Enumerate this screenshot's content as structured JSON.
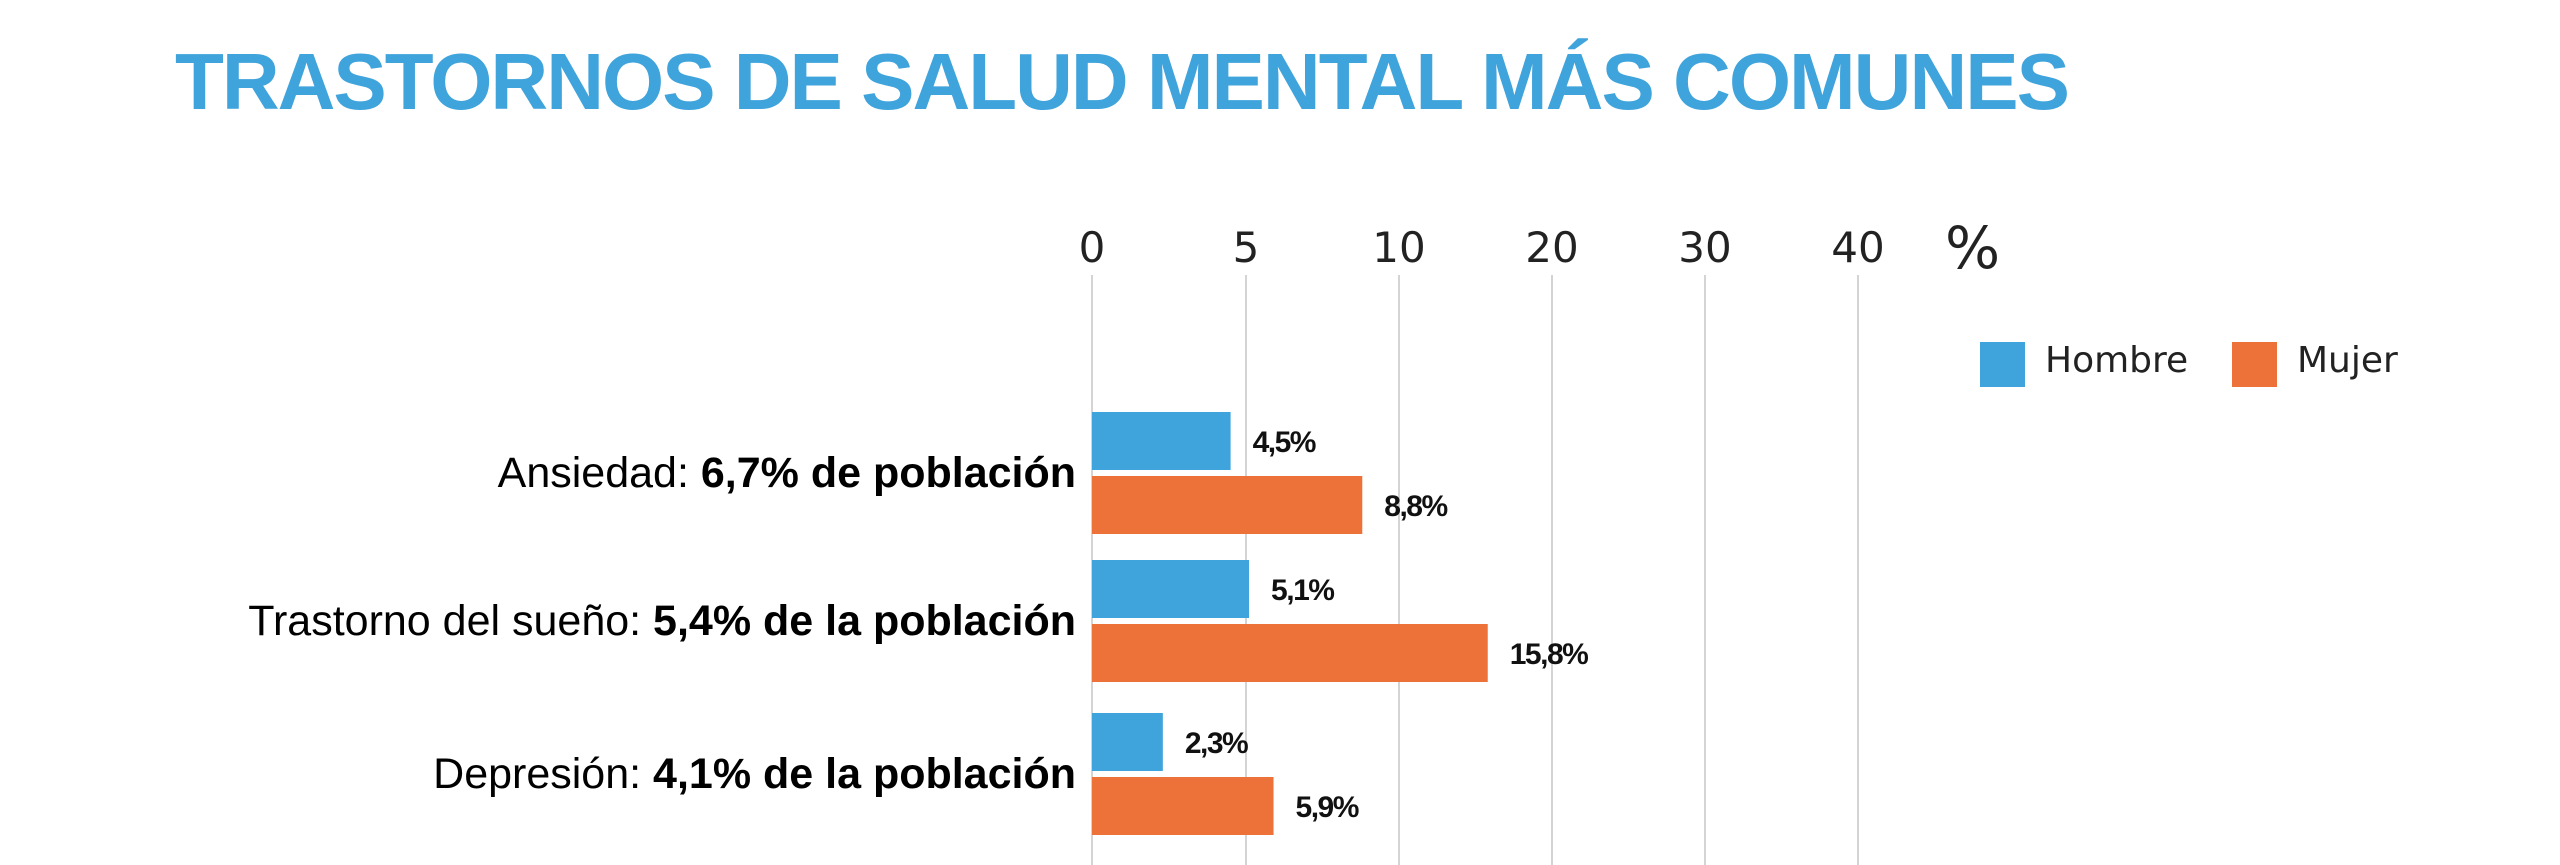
{
  "title": "TRASTORNOS DE SALUD MENTAL MÁS COMUNES",
  "colors": {
    "title": "#3fa3dc",
    "hombre": "#3fa3dc",
    "mujer": "#ed723a",
    "grid": "#d4d4d4"
  },
  "chart_data": {
    "type": "bar",
    "orientation": "horizontal",
    "title": "TRASTORNOS DE SALUD MENTAL MÁS COMUNES",
    "unit": "%",
    "x_ticks": [
      0,
      5,
      10,
      20,
      30,
      40
    ],
    "grid": true,
    "legend_position": "top-right",
    "categories": [
      {
        "prefix": "Ansiedad: ",
        "bold": "6,7% de población"
      },
      {
        "prefix": "Trastorno del sueño: ",
        "bold": "5,4% de la población"
      },
      {
        "prefix": "Depresión: ",
        "bold": "4,1% de la población"
      }
    ],
    "series": [
      {
        "name": "Hombre",
        "values": [
          4.5,
          5.1,
          2.3
        ],
        "labels": [
          "4,5%",
          "5,1%",
          "2,3%"
        ]
      },
      {
        "name": "Mujer",
        "values": [
          8.8,
          15.8,
          5.9
        ],
        "labels": [
          "8,8%",
          "15,8%",
          "5,9%"
        ]
      }
    ]
  }
}
